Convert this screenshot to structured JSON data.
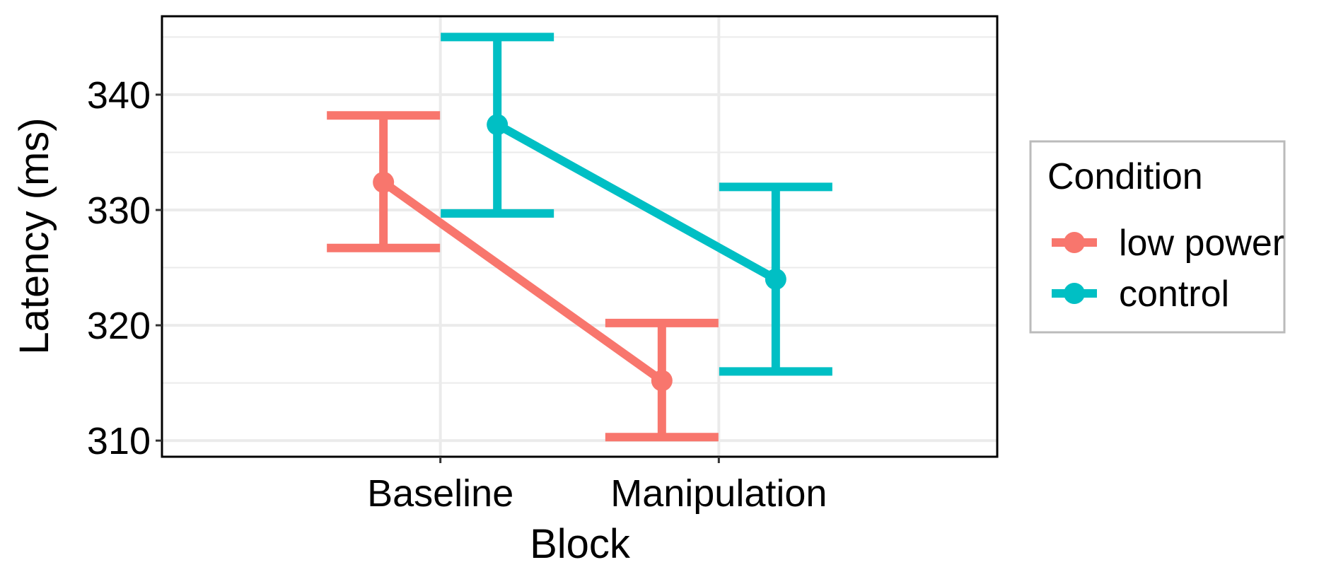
{
  "chart_data": {
    "type": "line",
    "categories": [
      "Baseline",
      "Manipulation"
    ],
    "xlabel": "Block",
    "ylabel": "Latency (ms)",
    "ylim": [
      308.6,
      346.8
    ],
    "yticks": [
      310,
      320,
      330,
      340
    ],
    "yticks_minor": [
      315,
      325,
      335,
      345
    ],
    "grid": true,
    "legend": {
      "title": "Condition",
      "position": "right"
    },
    "series": [
      {
        "name": "low power",
        "color": "#F8766D",
        "values": [
          332.4,
          315.2
        ],
        "ci_low": [
          326.7,
          310.3
        ],
        "ci_high": [
          338.2,
          320.2
        ]
      },
      {
        "name": "control",
        "color": "#00BFC4",
        "values": [
          337.4,
          324.0
        ],
        "ci_low": [
          329.7,
          316.0
        ],
        "ci_high": [
          345.0,
          332.0
        ]
      }
    ]
  }
}
